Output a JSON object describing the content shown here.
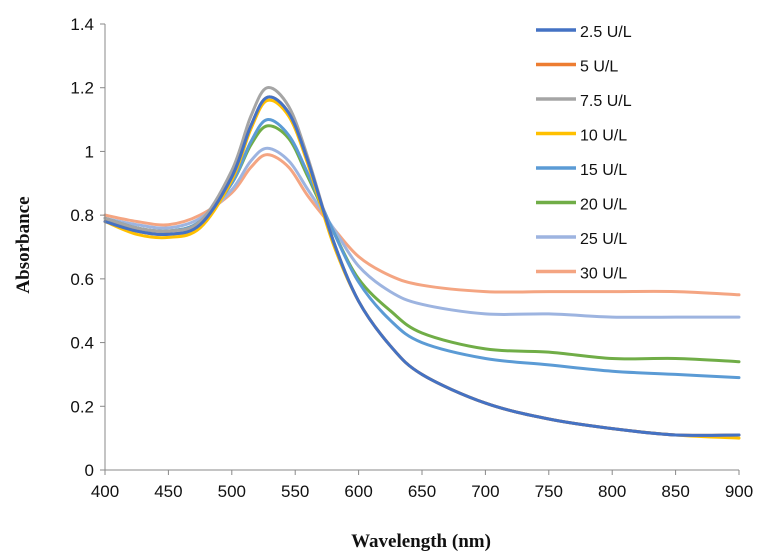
{
  "chart_data": {
    "type": "line",
    "title": "",
    "xlabel": "Wavelength (nm)",
    "ylabel": "Absorbance",
    "xlim": [
      400,
      900
    ],
    "ylim": [
      0,
      1.4
    ],
    "xticks": [
      "400",
      "450",
      "500",
      "550",
      "600",
      "650",
      "700",
      "750",
      "800",
      "850",
      "900"
    ],
    "yticks": [
      "0",
      "0.2",
      "0.4",
      "0.6",
      "0.8",
      "1",
      "1.2",
      "1.4"
    ],
    "grid": false,
    "legend_position": "top-right",
    "x": [
      400,
      425,
      450,
      475,
      500,
      515,
      528,
      545,
      560,
      580,
      600,
      625,
      650,
      700,
      750,
      800,
      850,
      900
    ],
    "series": [
      {
        "name": "2.5 U/L",
        "color": "#4472C4",
        "values": [
          0.78,
          0.75,
          0.74,
          0.77,
          0.92,
          1.08,
          1.17,
          1.12,
          0.97,
          0.72,
          0.53,
          0.39,
          0.3,
          0.21,
          0.16,
          0.13,
          0.11,
          0.11
        ]
      },
      {
        "name": "5 U/L",
        "color": "#ED7D31",
        "values": [
          0.78,
          0.75,
          0.74,
          0.77,
          0.92,
          1.08,
          1.17,
          1.12,
          0.97,
          0.72,
          0.53,
          0.39,
          0.3,
          0.21,
          0.16,
          0.13,
          0.11,
          0.11
        ]
      },
      {
        "name": "7.5 U/L",
        "color": "#A5A5A5",
        "values": [
          0.79,
          0.76,
          0.75,
          0.78,
          0.94,
          1.11,
          1.2,
          1.14,
          0.98,
          0.72,
          0.53,
          0.39,
          0.3,
          0.21,
          0.16,
          0.13,
          0.11,
          0.11
        ]
      },
      {
        "name": "10 U/L",
        "color": "#FFC000",
        "values": [
          0.78,
          0.74,
          0.73,
          0.76,
          0.91,
          1.07,
          1.16,
          1.11,
          0.96,
          0.71,
          0.53,
          0.39,
          0.3,
          0.21,
          0.16,
          0.13,
          0.11,
          0.1
        ]
      },
      {
        "name": "15 U/L",
        "color": "#5B9BD5",
        "values": [
          0.79,
          0.76,
          0.75,
          0.78,
          0.9,
          1.03,
          1.1,
          1.05,
          0.93,
          0.75,
          0.59,
          0.47,
          0.4,
          0.35,
          0.33,
          0.31,
          0.3,
          0.29
        ]
      },
      {
        "name": "20 U/L",
        "color": "#70AD47",
        "values": [
          0.79,
          0.76,
          0.75,
          0.78,
          0.9,
          1.02,
          1.08,
          1.04,
          0.92,
          0.75,
          0.6,
          0.5,
          0.43,
          0.38,
          0.37,
          0.35,
          0.35,
          0.34
        ]
      },
      {
        "name": "25 U/L",
        "color": "#9DB4E0",
        "values": [
          0.79,
          0.77,
          0.76,
          0.79,
          0.88,
          0.97,
          1.01,
          0.97,
          0.88,
          0.76,
          0.64,
          0.56,
          0.52,
          0.49,
          0.49,
          0.48,
          0.48,
          0.48
        ]
      },
      {
        "name": "30 U/L",
        "color": "#F4A582",
        "values": [
          0.8,
          0.78,
          0.77,
          0.8,
          0.87,
          0.95,
          0.99,
          0.95,
          0.86,
          0.76,
          0.67,
          0.61,
          0.58,
          0.56,
          0.56,
          0.56,
          0.56,
          0.55
        ]
      }
    ]
  }
}
